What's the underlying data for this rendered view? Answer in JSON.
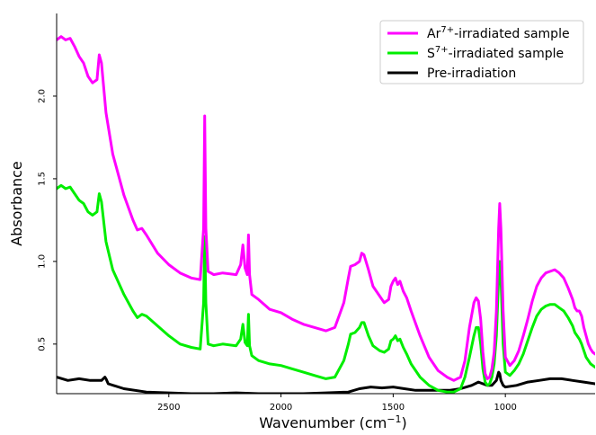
{
  "chart_data": {
    "type": "line",
    "title": "",
    "xlabel": "Wavenumber (cm",
    "xlabel_sup": "−1",
    "xlabel_close": ")",
    "ylabel": "Absorbance",
    "xlim": [
      3000,
      600
    ],
    "ylim": [
      0.2,
      2.5
    ],
    "x_reversed": true,
    "grid": false,
    "legend_position": "top-right",
    "x_ticks": [
      2500,
      2000,
      1500,
      1000
    ],
    "x_tick_labels": [
      "2500",
      "2000",
      "1500",
      "1000"
    ],
    "y_ticks": [
      0.5,
      1.0,
      1.5,
      2.0
    ],
    "y_tick_labels": [
      "0.5",
      "1.0",
      "1.5",
      "2.0"
    ],
    "series": [
      {
        "name": "Ar7+-irradiated sample",
        "label_base": "Ar",
        "label_sup": "7+",
        "label_rest": "-irradiated sample",
        "color": "#ff00ff",
        "x": [
          3000,
          2980,
          2960,
          2940,
          2920,
          2900,
          2880,
          2860,
          2840,
          2820,
          2810,
          2800,
          2780,
          2750,
          2700,
          2660,
          2640,
          2620,
          2600,
          2550,
          2500,
          2450,
          2400,
          2360,
          2345,
          2340,
          2335,
          2325,
          2300,
          2260,
          2200,
          2180,
          2170,
          2160,
          2150,
          2145,
          2140,
          2130,
          2100,
          2050,
          2000,
          1950,
          1900,
          1850,
          1800,
          1760,
          1720,
          1700,
          1690,
          1670,
          1650,
          1640,
          1630,
          1610,
          1590,
          1560,
          1540,
          1520,
          1510,
          1500,
          1490,
          1480,
          1470,
          1455,
          1440,
          1420,
          1380,
          1340,
          1300,
          1260,
          1230,
          1200,
          1180,
          1160,
          1140,
          1130,
          1120,
          1110,
          1100,
          1090,
          1080,
          1070,
          1060,
          1050,
          1040,
          1030,
          1025,
          1020,
          1010,
          1000,
          980,
          960,
          940,
          920,
          900,
          880,
          860,
          840,
          820,
          800,
          780,
          760,
          740,
          720,
          700,
          690,
          680,
          670,
          660,
          650,
          640,
          630,
          620,
          610,
          600
        ],
        "y": [
          2.34,
          2.36,
          2.34,
          2.35,
          2.3,
          2.24,
          2.2,
          2.12,
          2.08,
          2.1,
          2.25,
          2.2,
          1.9,
          1.65,
          1.4,
          1.25,
          1.19,
          1.2,
          1.16,
          1.05,
          0.98,
          0.93,
          0.9,
          0.89,
          1.2,
          1.88,
          1.2,
          0.94,
          0.92,
          0.93,
          0.92,
          0.98,
          1.1,
          0.96,
          0.92,
          1.16,
          0.92,
          0.8,
          0.77,
          0.71,
          0.69,
          0.65,
          0.62,
          0.6,
          0.58,
          0.6,
          0.75,
          0.9,
          0.97,
          0.98,
          1.0,
          1.05,
          1.04,
          0.95,
          0.85,
          0.79,
          0.75,
          0.77,
          0.85,
          0.88,
          0.9,
          0.86,
          0.88,
          0.82,
          0.78,
          0.7,
          0.55,
          0.42,
          0.34,
          0.3,
          0.28,
          0.3,
          0.4,
          0.6,
          0.75,
          0.78,
          0.76,
          0.65,
          0.45,
          0.32,
          0.29,
          0.3,
          0.35,
          0.45,
          0.7,
          1.2,
          1.35,
          1.2,
          0.7,
          0.42,
          0.37,
          0.4,
          0.46,
          0.55,
          0.65,
          0.76,
          0.85,
          0.9,
          0.93,
          0.94,
          0.95,
          0.93,
          0.9,
          0.84,
          0.77,
          0.72,
          0.7,
          0.7,
          0.67,
          0.6,
          0.55,
          0.5,
          0.47,
          0.45,
          0.44
        ]
      },
      {
        "name": "S7+-irradiated sample",
        "label_base": "S",
        "label_sup": "7+",
        "label_rest": "-irradiated sample",
        "color": "#00ee00",
        "x": [
          3000,
          2980,
          2960,
          2940,
          2920,
          2900,
          2880,
          2860,
          2840,
          2820,
          2810,
          2800,
          2780,
          2750,
          2700,
          2660,
          2640,
          2620,
          2600,
          2550,
          2500,
          2450,
          2400,
          2360,
          2345,
          2340,
          2335,
          2325,
          2300,
          2260,
          2200,
          2180,
          2170,
          2160,
          2150,
          2145,
          2140,
          2130,
          2100,
          2050,
          2000,
          1950,
          1900,
          1850,
          1800,
          1760,
          1720,
          1700,
          1690,
          1670,
          1650,
          1640,
          1630,
          1610,
          1590,
          1560,
          1540,
          1520,
          1510,
          1500,
          1490,
          1480,
          1470,
          1455,
          1440,
          1420,
          1380,
          1340,
          1300,
          1260,
          1230,
          1200,
          1180,
          1160,
          1140,
          1130,
          1120,
          1110,
          1100,
          1090,
          1080,
          1070,
          1060,
          1050,
          1040,
          1030,
          1025,
          1020,
          1010,
          1000,
          980,
          960,
          940,
          920,
          900,
          880,
          860,
          840,
          820,
          800,
          780,
          760,
          740,
          720,
          700,
          690,
          680,
          670,
          660,
          650,
          640,
          630,
          620,
          610,
          600
        ],
        "y": [
          1.44,
          1.46,
          1.44,
          1.45,
          1.41,
          1.37,
          1.35,
          1.3,
          1.28,
          1.3,
          1.41,
          1.36,
          1.12,
          0.95,
          0.8,
          0.7,
          0.66,
          0.68,
          0.67,
          0.61,
          0.55,
          0.5,
          0.48,
          0.47,
          0.75,
          1.15,
          0.75,
          0.5,
          0.49,
          0.5,
          0.49,
          0.53,
          0.62,
          0.51,
          0.49,
          0.68,
          0.49,
          0.43,
          0.4,
          0.38,
          0.37,
          0.35,
          0.33,
          0.31,
          0.29,
          0.3,
          0.4,
          0.5,
          0.56,
          0.57,
          0.6,
          0.63,
          0.63,
          0.55,
          0.49,
          0.46,
          0.45,
          0.47,
          0.52,
          0.53,
          0.55,
          0.52,
          0.53,
          0.48,
          0.44,
          0.38,
          0.3,
          0.25,
          0.22,
          0.21,
          0.21,
          0.23,
          0.3,
          0.42,
          0.55,
          0.6,
          0.6,
          0.5,
          0.35,
          0.27,
          0.25,
          0.26,
          0.3,
          0.38,
          0.55,
          0.9,
          1.0,
          0.9,
          0.5,
          0.33,
          0.31,
          0.34,
          0.38,
          0.44,
          0.52,
          0.6,
          0.67,
          0.71,
          0.73,
          0.74,
          0.74,
          0.72,
          0.7,
          0.66,
          0.61,
          0.57,
          0.55,
          0.53,
          0.5,
          0.46,
          0.42,
          0.4,
          0.38,
          0.37,
          0.36
        ]
      },
      {
        "name": "Pre-irradiation",
        "label_base": "Pre-irradiation",
        "label_sup": "",
        "label_rest": "",
        "color": "#000000",
        "x": [
          3000,
          2950,
          2900,
          2850,
          2800,
          2785,
          2780,
          2770,
          2700,
          2600,
          2500,
          2400,
          2300,
          2200,
          2100,
          2000,
          1900,
          1800,
          1700,
          1650,
          1600,
          1550,
          1500,
          1450,
          1400,
          1350,
          1300,
          1250,
          1200,
          1150,
          1120,
          1100,
          1080,
          1060,
          1040,
          1030,
          1025,
          1020,
          1010,
          1000,
          950,
          900,
          850,
          800,
          750,
          700,
          650,
          600
        ],
        "y": [
          0.3,
          0.28,
          0.29,
          0.28,
          0.28,
          0.3,
          0.29,
          0.26,
          0.23,
          0.21,
          0.205,
          0.2,
          0.2,
          0.205,
          0.2,
          0.2,
          0.2,
          0.205,
          0.21,
          0.23,
          0.24,
          0.235,
          0.24,
          0.23,
          0.22,
          0.22,
          0.22,
          0.22,
          0.23,
          0.25,
          0.27,
          0.26,
          0.25,
          0.25,
          0.28,
          0.33,
          0.32,
          0.28,
          0.25,
          0.24,
          0.25,
          0.27,
          0.28,
          0.29,
          0.29,
          0.28,
          0.27,
          0.26
        ]
      }
    ]
  }
}
